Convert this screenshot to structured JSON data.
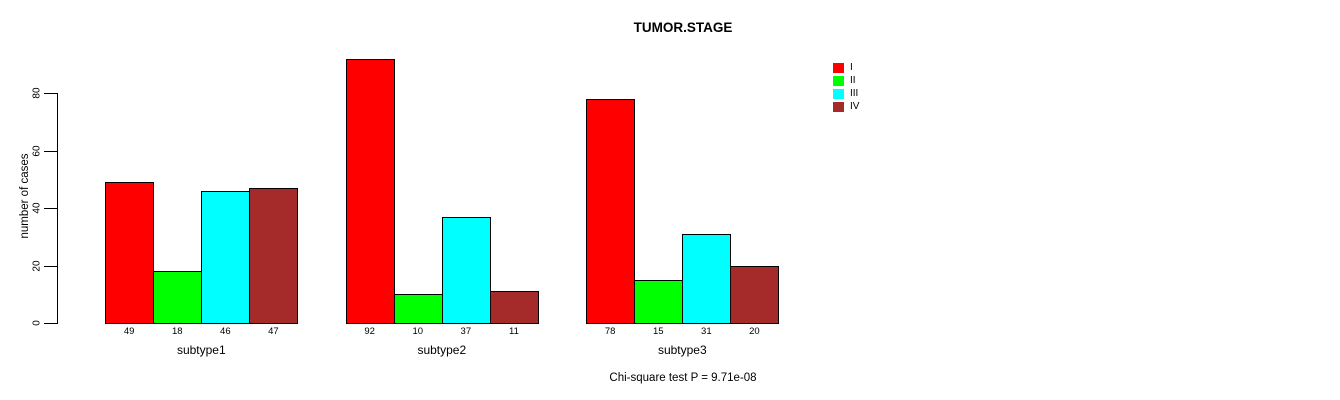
{
  "title": "TUMOR.STAGE",
  "caption": "Chi-square test P = 9.71e-08",
  "chart_data": {
    "type": "bar",
    "title": "TUMOR.STAGE",
    "xlabel": "",
    "ylabel": "number of cases",
    "categories": [
      "subtype1",
      "subtype2",
      "subtype3"
    ],
    "series": [
      {
        "name": "I",
        "color": "#FF0000",
        "values": [
          49,
          92,
          78
        ]
      },
      {
        "name": "II",
        "color": "#00FF00",
        "values": [
          18,
          10,
          15
        ]
      },
      {
        "name": "III",
        "color": "#00FFFF",
        "values": [
          46,
          37,
          31
        ]
      },
      {
        "name": "IV",
        "color": "#A52A2A",
        "values": [
          47,
          11,
          20
        ]
      }
    ],
    "bar_value_labels": [
      [
        49,
        18,
        46,
        47
      ],
      [
        92,
        10,
        37,
        11
      ],
      [
        78,
        15,
        31,
        20
      ]
    ],
    "yticks": [
      0,
      20,
      40,
      60,
      80
    ],
    "ylim": [
      0,
      96
    ],
    "grid": false,
    "legend_position": "top-right",
    "annotation": "Chi-square test P = 9.71e-08"
  }
}
